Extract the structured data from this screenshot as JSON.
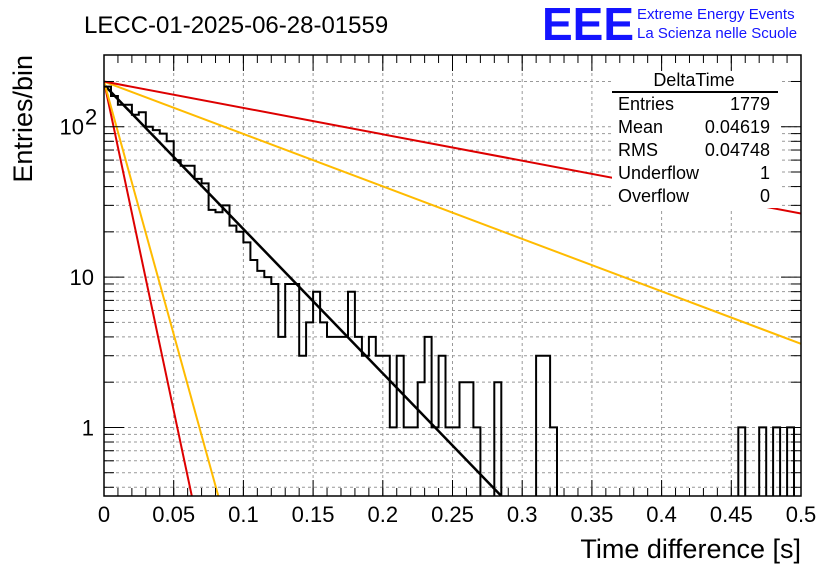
{
  "chart_data": {
    "type": "line",
    "title": "LECC-01-2025-06-28-01559",
    "xlabel": "Time difference [s]",
    "ylabel": "Entries/bin",
    "xlim": [
      0,
      0.5
    ],
    "ylim": [
      0.35,
      300
    ],
    "yscale": "log",
    "grid": true,
    "x_ticks": [
      {
        "value": 0,
        "label": "0"
      },
      {
        "value": 0.05,
        "label": "0.05"
      },
      {
        "value": 0.1,
        "label": "0.1"
      },
      {
        "value": 0.15,
        "label": "0.15"
      },
      {
        "value": 0.2,
        "label": "0.2"
      },
      {
        "value": 0.25,
        "label": "0.25"
      },
      {
        "value": 0.3,
        "label": "0.3"
      },
      {
        "value": 0.35,
        "label": "0.35"
      },
      {
        "value": 0.4,
        "label": "0.4"
      },
      {
        "value": 0.45,
        "label": "0.45"
      },
      {
        "value": 0.5,
        "label": "0.5"
      }
    ],
    "y_ticks": [
      {
        "value": 1,
        "label": "1"
      },
      {
        "value": 10,
        "label": "10"
      },
      {
        "value": 100,
        "label": "10",
        "sup": "2"
      }
    ],
    "histogram": {
      "name": "DeltaTime",
      "color": "#000000",
      "bin_width": 0.005,
      "x0": 0,
      "counts": [
        185,
        160,
        140,
        140,
        120,
        125,
        100,
        95,
        90,
        80,
        60,
        55,
        55,
        45,
        42,
        28,
        27,
        30,
        22,
        20,
        17,
        13,
        11,
        10,
        9,
        4,
        9,
        9,
        3,
        5,
        8,
        5,
        4,
        4,
        4,
        8,
        4,
        3,
        4,
        3,
        3,
        1,
        3,
        1,
        1,
        2,
        4,
        1,
        3,
        1,
        1,
        2,
        2,
        1,
        0,
        0,
        2,
        0,
        0,
        0,
        0,
        0,
        3,
        3,
        1,
        0,
        0,
        0,
        0,
        0,
        0,
        0,
        0,
        0,
        0,
        0,
        0,
        0,
        0,
        0,
        0,
        0,
        0,
        0,
        0,
        0,
        0,
        0,
        0,
        0,
        0,
        1,
        0,
        0,
        1,
        0,
        1,
        0,
        1,
        0,
        0,
        0,
        0,
        0,
        0,
        0,
        0,
        0,
        0,
        0,
        0,
        0,
        0,
        0,
        0,
        0,
        0,
        0,
        0,
        0
      ]
    },
    "series": [
      {
        "color": "#000000",
        "values": [
          [
            0,
            190
          ],
          [
            0.285,
            0.35
          ]
        ]
      },
      {
        "color": "#dd0000",
        "values": [
          [
            0,
            200
          ],
          [
            0.063,
            0.35
          ]
        ]
      },
      {
        "color": "#ffbb00",
        "values": [
          [
            0,
            200
          ],
          [
            0.082,
            0.35
          ]
        ]
      },
      {
        "color": "#ffbb00",
        "values": [
          [
            0,
            200
          ],
          [
            0.5,
            3.6
          ]
        ]
      },
      {
        "color": "#dd0000",
        "values": [
          [
            0,
            200
          ],
          [
            0.5,
            26.5
          ]
        ]
      }
    ],
    "stats_box": {
      "title": "DeltaTime",
      "rows": [
        {
          "label": "Entries",
          "value": "1779"
        },
        {
          "label": "Mean",
          "value": "0.04619"
        },
        {
          "label": "RMS",
          "value": "0.04748"
        },
        {
          "label": "Underflow",
          "value": "1"
        },
        {
          "label": "Overflow",
          "value": "0"
        }
      ]
    }
  },
  "logo": {
    "letters": "EEE",
    "line1": "Extreme Energy Events",
    "line2": "La Scienza nelle Scuole"
  }
}
